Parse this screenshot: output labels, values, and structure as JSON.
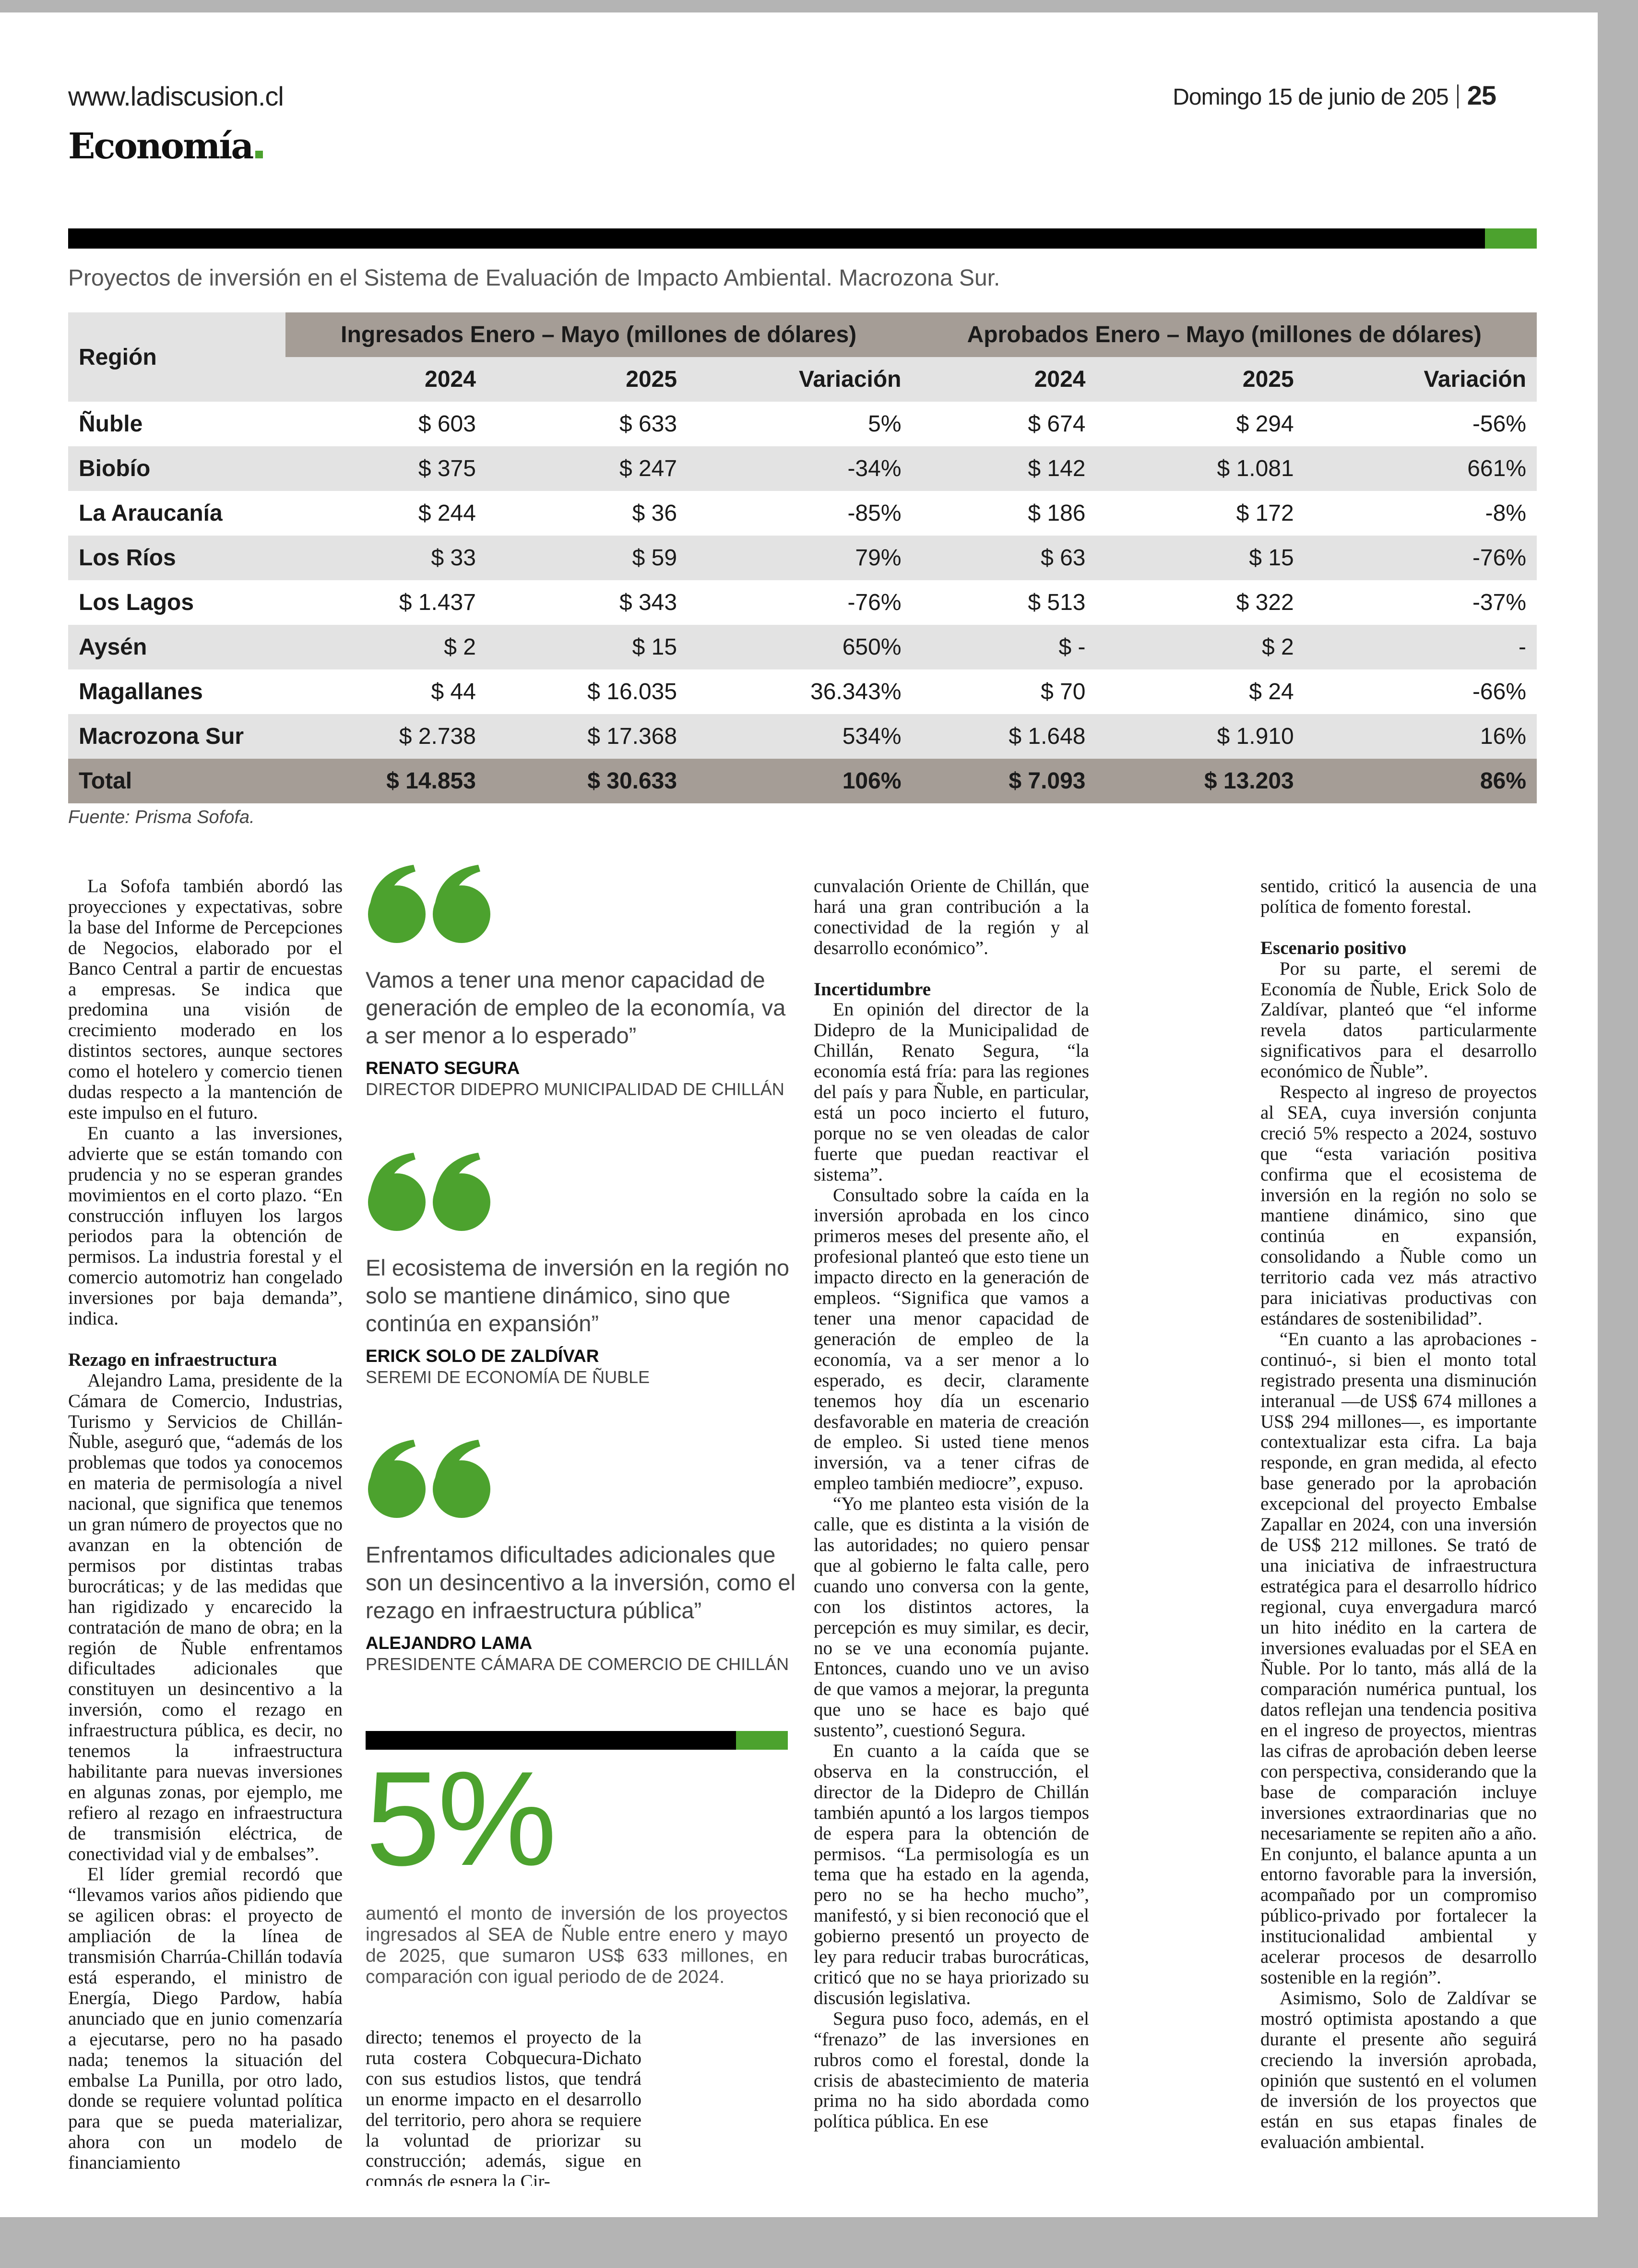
{
  "header": {
    "url": "www.ladiscusion.cl",
    "date": "Domingo 15 de junio de 205",
    "page_number": "25",
    "section": "Economía"
  },
  "colors": {
    "accent": "#4ca22e",
    "table_header": "#a59d96",
    "row_alt": "#e3e3e3"
  },
  "table": {
    "caption": "Proyectos de inversión en el Sistema de Evaluación de Impacto Ambiental. Macrozona Sur.",
    "region_header": "Región",
    "group_headers": [
      "Ingresados Enero – Mayo (millones de dólares)",
      "Aprobados Enero – Mayo (millones de dólares)"
    ],
    "sub_headers": [
      "2024",
      "2025",
      "Variación",
      "2024",
      "2025",
      "Variación"
    ],
    "rows": [
      [
        "Ñuble",
        "$ 603",
        "$ 633",
        "5%",
        "$ 674",
        "$ 294",
        "-56%"
      ],
      [
        "Biobío",
        "$ 375",
        "$ 247",
        "-34%",
        "$ 142",
        "$ 1.081",
        "661%"
      ],
      [
        "La Araucanía",
        "$ 244",
        "$ 36",
        "-85%",
        "$ 186",
        "$ 172",
        "-8%"
      ],
      [
        "Los Ríos",
        "$ 33",
        "$ 59",
        "79%",
        "$ 63",
        "$ 15",
        "-76%"
      ],
      [
        "Los Lagos",
        "$ 1.437",
        "$ 343",
        "-76%",
        "$ 513",
        "$ 322",
        "-37%"
      ],
      [
        "Aysén",
        "$ 2",
        "$ 15",
        "650%",
        "$ -",
        "$ 2",
        "-"
      ],
      [
        "Magallanes",
        "$ 44",
        "$ 16.035",
        "36.343%",
        "$ 70",
        "$ 24",
        "-66%"
      ],
      [
        "Macrozona Sur",
        "$ 2.738",
        "$ 17.368",
        "534%",
        "$ 1.648",
        "$ 1.910",
        "16%"
      ]
    ],
    "total": [
      "Total",
      "$ 14.853",
      "$ 30.633",
      "106%",
      "$ 7.093",
      "$ 13.203",
      "86%"
    ],
    "source": "Fuente: Prisma Sofofa."
  },
  "quotes": [
    {
      "text": "Vamos a tener una menor capacidad de generación de empleo de la economía, va a ser menor a lo esperado”",
      "name": "RENATO SEGURA",
      "role": "DIRECTOR DIDEPRO MUNICIPALIDAD DE CHILLÁN"
    },
    {
      "text": "El ecosistema de inversión en la región no solo se mantiene dinámico, sino que continúa en expansión”",
      "name": "ERICK SOLO DE ZALDÍVAR",
      "role": "SEREMI DE ECONOMÍA DE ÑUBLE"
    },
    {
      "text": "Enfrentamos dificultades adicionales que son un desincentivo a la inversión, como el rezago en infraestructura pública”",
      "name": "ALEJANDRO LAMA",
      "role": "PRESIDENTE CÁMARA DE COMERCIO DE CHILLÁN"
    }
  ],
  "highlight": {
    "figure": "5%",
    "text": "aumentó el monto de inversión de los proyectos ingresados al SEA de Ñuble entre enero y mayo de 2025, que sumaron US$ 633 millones, en comparación con igual periodo de de 2024."
  },
  "columns": [
    [
      {
        "type": "p",
        "text": "La Sofofa también abordó las proyecciones y expectativas, sobre la base del Informe de Percepciones de Negocios, elaborado por el Banco Central a partir de encuestas a empresas. Se indica que predomina una visión de crecimiento moderado en los distintos sectores, aunque sectores como el hotelero y comercio tienen dudas respecto a la mantención de este impulso en el futuro."
      },
      {
        "type": "p",
        "text": "En cuanto a las inversiones, advierte que se están tomando con prudencia y no se esperan grandes movimientos en el corto plazo. “En construcción influyen los largos periodos para la obtención de permisos. La industria forestal y el comercio automotriz han congelado inversiones por baja demanda”, indica."
      },
      {
        "type": "h",
        "text": "Rezago en infraestructura"
      },
      {
        "type": "p",
        "text": "Alejandro Lama, presidente de la Cámara de Comercio, Industrias, Turismo y Servicios de Chillán- Ñuble, aseguró que, “además de los problemas que todos ya conocemos en materia de permisología a nivel nacional, que significa que tenemos un gran número de proyectos que no avanzan en la obtención de permisos por distintas trabas burocráticas; y de las medidas que han rigidizado y encarecido la contratación de mano de obra; en la región de Ñuble enfrentamos dificultades adicionales que constituyen un desincentivo a la inversión, como el rezago en infraestructura pública, es decir, no tenemos la infraestructura habilitante para nuevas inversiones en algunas zonas, por ejemplo, me refiero al rezago en infraestructura de transmisión eléctrica, de conectividad vial y de embalses”."
      },
      {
        "type": "p",
        "text": "El líder gremial recordó que “llevamos varios años pidiendo que se agilicen obras: el proyecto de ampliación de la línea de transmisión Charrúa-Chillán todavía está esperando, el ministro de Energía, Diego Pardow, había anunciado que en junio comenzaría a ejecutarse, pero no ha pasado nada; tenemos la situación del embalse La Punilla, por otro lado, donde se requiere voluntad política para que se pueda materializar, ahora con un modelo de financiamiento"
      }
    ],
    [
      {
        "type": "c",
        "text": "directo; tenemos el proyecto de la ruta costera Cobquecura-Dichato con sus estudios listos, que tendrá un enorme impacto en el desarrollo del territorio, pero ahora se requiere la voluntad de priorizar su construcción; además, sigue en compás de espera la Cir-"
      }
    ],
    [
      {
        "type": "c",
        "text": "cunvalación Oriente de Chillán, que hará una gran contribución a la conectividad de la región y al desarrollo económico”."
      },
      {
        "type": "h",
        "text": "Incertidumbre"
      },
      {
        "type": "p",
        "text": "En opinión del director de la Didepro de la Municipalidad de Chillán, Renato Segura, “la economía está fría: para las regiones del país y para Ñuble, en particular, está un poco incierto el futuro, porque no se ven oleadas de calor fuerte que puedan reactivar el sistema”."
      },
      {
        "type": "p",
        "text": "Consultado sobre la caída en la inversión aprobada en los cinco primeros meses del presente año, el profesional planteó que esto tiene un impacto directo en la generación de empleos. “Significa que vamos a tener una menor capacidad de generación de empleo de la economía, va a ser menor a lo esperado, es decir, claramente tenemos hoy día un escenario desfavorable en materia de creación de empleo. Si usted tiene menos inversión, va a tener cifras de empleo también mediocre”, expuso."
      },
      {
        "type": "p",
        "text": "“Yo me planteo esta visión de la calle, que es distinta a la visión de las autoridades; no quiero pensar que al gobierno le falta calle, pero cuando uno conversa con la gente, con los distintos actores, la percepción es muy similar, es decir, no se ve una economía pujante. Entonces, cuando uno ve un aviso de que vamos a mejorar, la pregunta que uno se hace es bajo qué sustento”, cuestionó Segura."
      },
      {
        "type": "p",
        "text": "En cuanto a la caída que se observa en la construcción, el director de la Didepro de Chillán también apuntó a los largos tiempos de espera para la obtención de permisos. “La permisología es un tema que ha estado en la agenda, pero no se ha hecho mucho”, manifestó, y si bien reconoció que el gobierno presentó un proyecto de ley para reducir trabas burocráticas, criticó que no se haya priorizado su discusión legislativa."
      },
      {
        "type": "p",
        "text": "Segura puso foco, además, en el “frenazo” de las inversiones en rubros como el forestal, donde la crisis de abastecimiento de materia prima no ha sido abordada como política pública. En ese"
      }
    ],
    [
      {
        "type": "c",
        "text": "sentido, criticó la ausencia de una política de fomento forestal."
      },
      {
        "type": "h",
        "text": "Escenario positivo"
      },
      {
        "type": "p",
        "text": "Por su parte, el seremi de Economía de Ñuble, Erick Solo de Zaldívar, planteó que “el informe revela datos particularmente significativos para el desarrollo económico de Ñuble”."
      },
      {
        "type": "p",
        "text": "Respecto al ingreso de proyectos al SEA, cuya inversión conjunta creció 5% respecto a 2024, sostuvo que “esta variación positiva confirma que el ecosistema de inversión en la región no solo se mantiene dinámico, sino que continúa en expansión, consolidando a Ñuble como un territorio cada vez más atractivo para iniciativas productivas con estándares de sostenibilidad”."
      },
      {
        "type": "p",
        "text": "“En cuanto a las aprobaciones -continuó-, si bien el monto total registrado presenta una disminución interanual —de US$ 674 millones a US$ 294 millones—, es importante contextualizar esta cifra. La baja responde, en gran medida, al efecto base generado por la aprobación excepcional del proyecto Embalse Zapallar en 2024, con una inversión de US$ 212 millones. Se trató de una iniciativa de infraestructura estratégica para el desarrollo hídrico regional, cuya envergadura marcó un hito inédito en la cartera de inversiones evaluadas por el SEA en Ñuble. Por lo tanto, más allá de la comparación numérica puntual, los datos reflejan una tendencia positiva en el ingreso de proyectos, mientras las cifras de aprobación deben leerse con perspectiva, considerando que la base de comparación incluye inversiones extraordinarias que no necesariamente se repiten año a año. En conjunto, el balance apunta a un entorno favorable para la inversión, acompañado por un compromiso público-privado por fortalecer la institucionalidad ambiental y acelerar procesos de desarrollo sostenible en la región”."
      },
      {
        "type": "p",
        "text": "Asimismo, Solo de Zaldívar se mostró optimista apostando a que durante el presente año seguirá creciendo la inversión aprobada, opinión que sustentó en el volumen de inversión de los proyectos que están en sus etapas finales de evaluación ambiental."
      }
    ]
  ]
}
